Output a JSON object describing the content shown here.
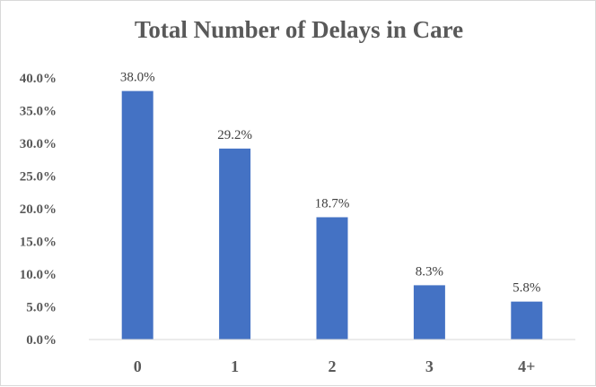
{
  "chart_data": {
    "type": "bar",
    "title": "Total Number of Delays in Care",
    "xlabel": "",
    "ylabel": "",
    "categories": [
      "0",
      "1",
      "2",
      "3",
      "4+"
    ],
    "values": [
      38.0,
      29.2,
      18.7,
      8.3,
      5.8
    ],
    "data_labels": [
      "38.0%",
      "29.2%",
      "18.7%",
      "8.3%",
      "5.8%"
    ],
    "ylim": [
      0,
      40
    ],
    "yticks": [
      0,
      5,
      10,
      15,
      20,
      25,
      30,
      35,
      40
    ],
    "ytick_labels": [
      "0.0%",
      "5.0%",
      "10.0%",
      "15.0%",
      "20.0%",
      "25.0%",
      "30.0%",
      "35.0%",
      "40.0%"
    ],
    "grid": false,
    "legend": "none",
    "colors": {
      "bar": "#4472c4",
      "axis": "#d9d9d9",
      "text": "#595959"
    }
  }
}
